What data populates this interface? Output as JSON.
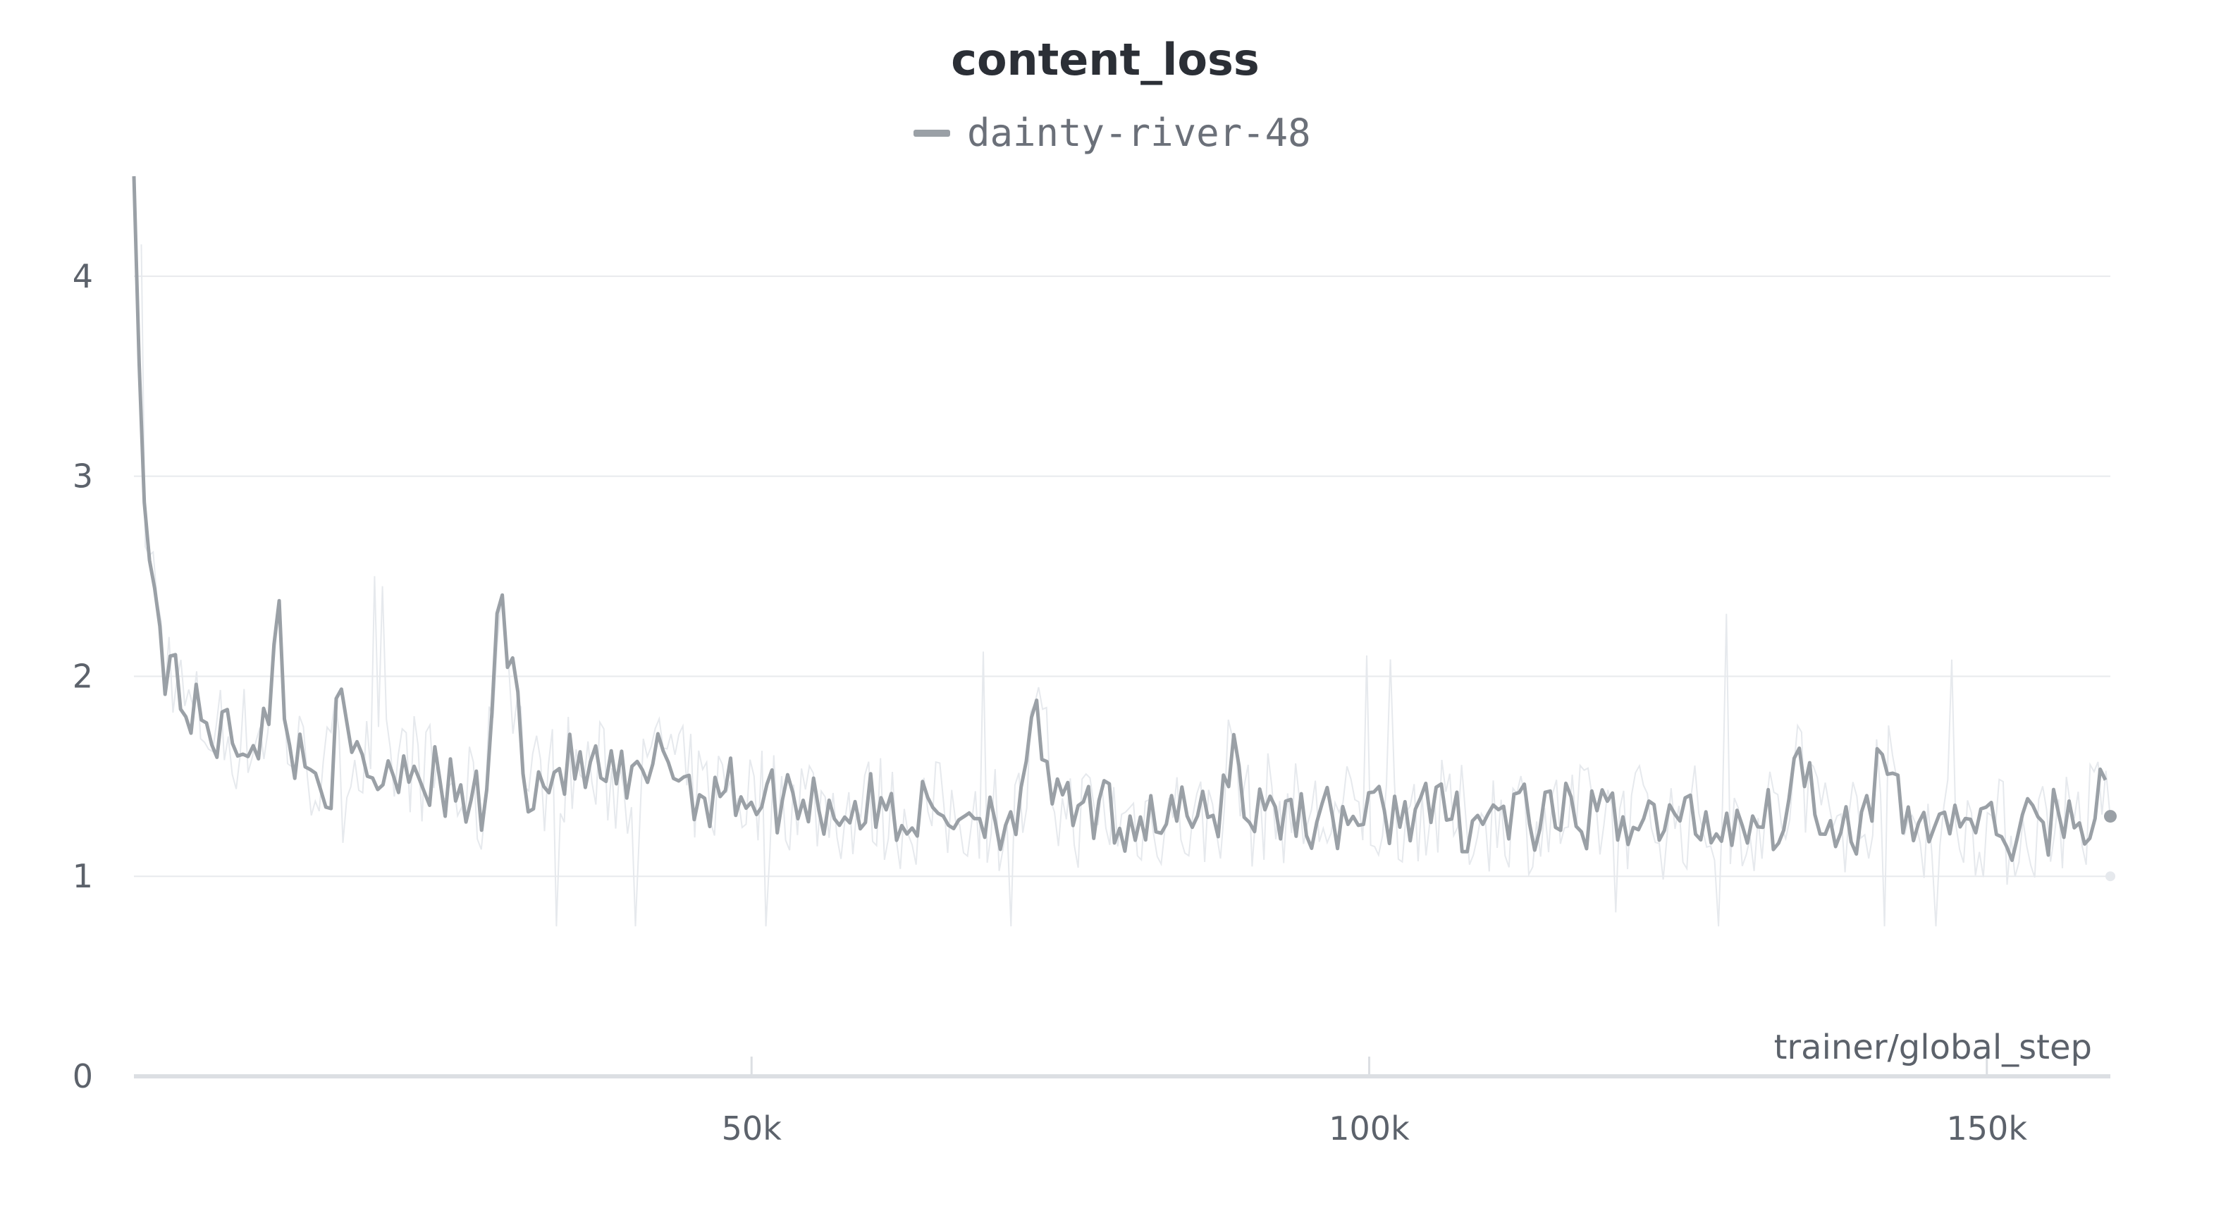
{
  "chart_data": {
    "type": "line",
    "title": "content_loss",
    "xlabel": "trainer/global_step",
    "ylabel": "",
    "xlim": [
      0,
      160000
    ],
    "ylim": [
      0,
      4.5
    ],
    "x_ticks": [
      {
        "value": 50000,
        "label": "50k"
      },
      {
        "value": 100000,
        "label": "100k"
      },
      {
        "value": 150000,
        "label": "150k"
      }
    ],
    "y_ticks": [
      {
        "value": 0,
        "label": "0"
      },
      {
        "value": 1,
        "label": "1"
      },
      {
        "value": 2,
        "label": "2"
      },
      {
        "value": 3,
        "label": "3"
      },
      {
        "value": 4,
        "label": "4"
      }
    ],
    "grid": true,
    "legend_position": "top-center",
    "colors": {
      "series": "#9aa0a6",
      "raw": "#e6e9ed",
      "grid": "#e8eaed",
      "axis": "#dcdfe3"
    },
    "series": [
      {
        "name": "dainty-river-48",
        "smoothed": true,
        "x": [
          0,
          200,
          500,
          800,
          1200,
          1500,
          1800,
          2200,
          2600,
          3000,
          3500,
          4000,
          5000,
          6000,
          7000,
          8000,
          9000,
          10000,
          11000,
          11700,
          12500,
          14000,
          16000,
          16600,
          17500,
          19000,
          20000,
          22000,
          24000,
          25000,
          26000,
          28000,
          28500,
          29500,
          32000,
          35000,
          38000,
          40000,
          42000,
          42500,
          44000,
          46000,
          48000,
          50000,
          52000,
          54000,
          56000,
          58000,
          60000,
          62000,
          64000,
          66000,
          68000,
          70000,
          72000,
          73000,
          75000,
          78000,
          80000,
          82000,
          84000,
          86000,
          88000,
          89000,
          90000,
          92000,
          94000,
          96000,
          98000,
          100000,
          102000,
          104000,
          106000,
          108000,
          110000,
          112000,
          114000,
          116000,
          118000,
          120000,
          122000,
          124000,
          126000,
          128000,
          130000,
          132000,
          134000,
          135000,
          136000,
          138000,
          140000,
          141500,
          143000,
          144000,
          146000,
          148000,
          150000,
          152000,
          154000,
          156000,
          158000,
          159500,
          160000
        ],
        "y": [
          4.5,
          4.3,
          3.3,
          2.9,
          2.6,
          2.5,
          2.4,
          2.2,
          2.05,
          2.1,
          2.0,
          1.85,
          1.8,
          1.75,
          1.72,
          1.68,
          1.7,
          1.72,
          1.75,
          2.35,
          1.65,
          1.55,
          1.5,
          1.85,
          1.6,
          1.55,
          1.5,
          1.6,
          1.5,
          1.45,
          1.4,
          1.35,
          1.3,
          2.45,
          1.45,
          1.55,
          1.5,
          1.45,
          1.45,
          1.75,
          1.5,
          1.4,
          1.45,
          1.4,
          1.38,
          1.42,
          1.35,
          1.33,
          1.35,
          1.3,
          1.32,
          1.3,
          1.35,
          1.3,
          1.32,
          1.8,
          1.3,
          1.32,
          1.28,
          1.3,
          1.32,
          1.25,
          1.35,
          1.7,
          1.3,
          1.35,
          1.32,
          1.28,
          1.3,
          1.3,
          1.32,
          1.35,
          1.3,
          1.28,
          1.3,
          1.32,
          1.25,
          1.3,
          1.28,
          1.3,
          1.32,
          1.25,
          1.3,
          1.25,
          1.3,
          1.28,
          1.32,
          1.7,
          1.35,
          1.3,
          1.25,
          1.6,
          1.3,
          1.25,
          1.28,
          1.3,
          1.25,
          1.2,
          1.25,
          1.3,
          1.28,
          1.42,
          1.3
        ]
      }
    ]
  }
}
